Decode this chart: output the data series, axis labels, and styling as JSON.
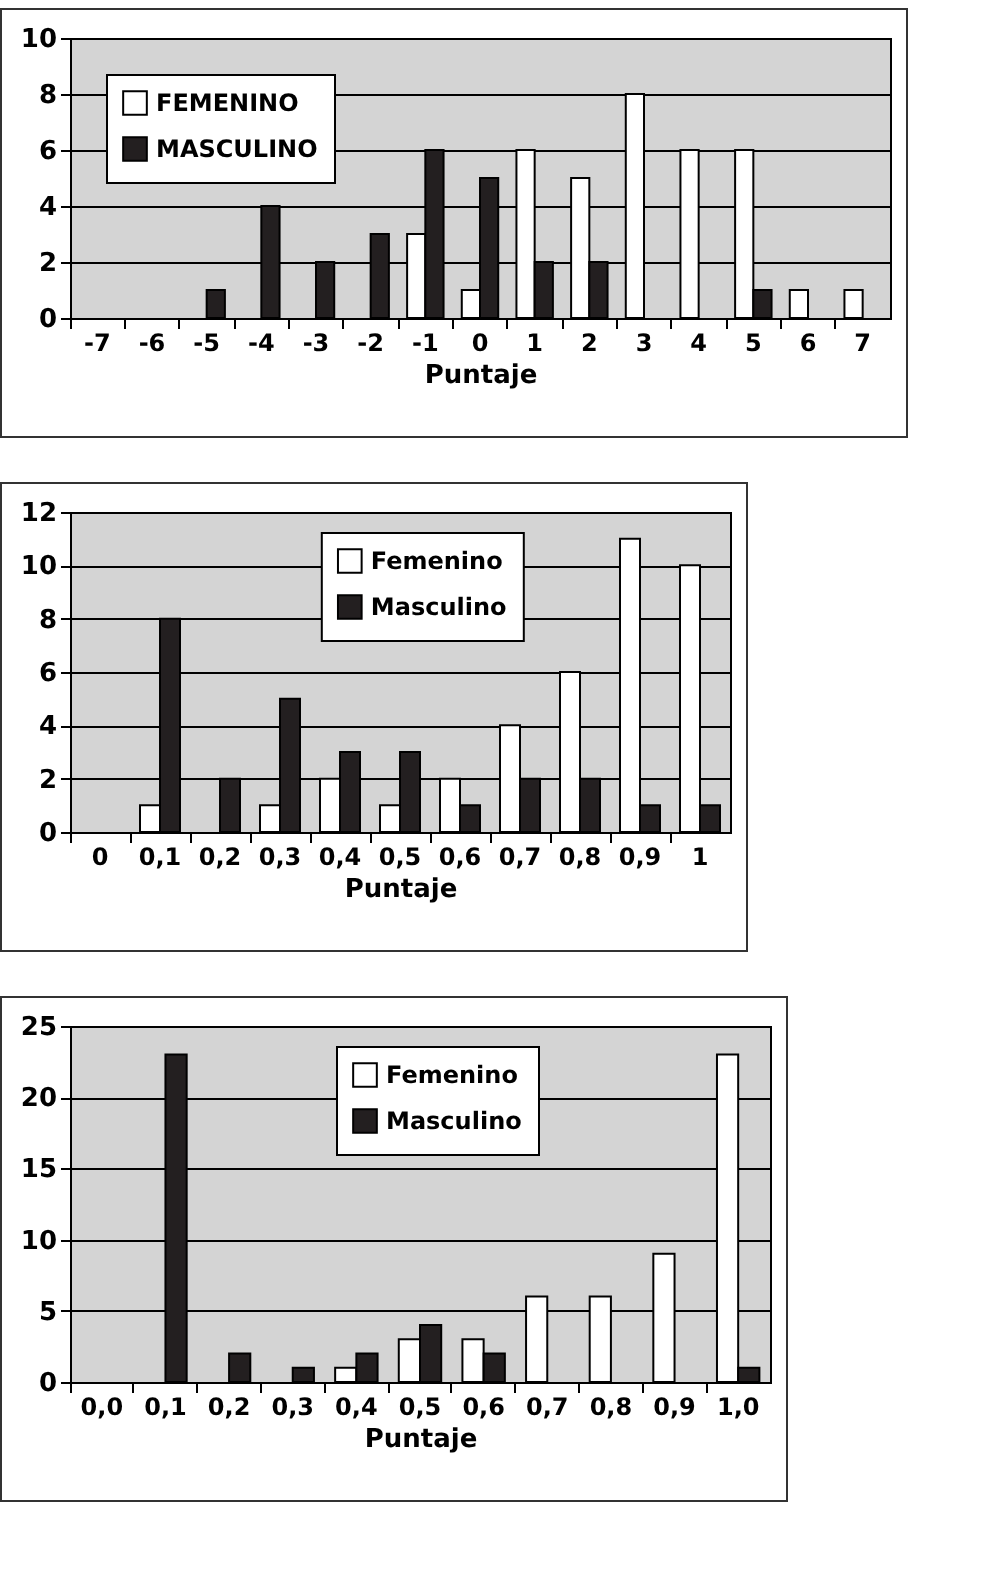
{
  "chart_data": [
    {
      "type": "bar",
      "xlabel": "Puntaje",
      "categories": [
        "-7",
        "-6",
        "-5",
        "-4",
        "-3",
        "-2",
        "-1",
        "0",
        "1",
        "2",
        "3",
        "4",
        "5",
        "6",
        "7"
      ],
      "series": [
        {
          "name": "FEMENINO",
          "color": "#ffffff",
          "values": [
            0,
            0,
            0,
            0,
            0,
            0,
            3,
            1,
            6,
            5,
            8,
            6,
            6,
            1,
            1
          ]
        },
        {
          "name": "MASCULINO",
          "color": "#231f20",
          "values": [
            0,
            0,
            1,
            4,
            2,
            3,
            6,
            5,
            2,
            2,
            0,
            0,
            1,
            0,
            0
          ]
        }
      ],
      "ylim": [
        0,
        10
      ],
      "yticks": [
        0,
        2,
        4,
        6,
        8,
        10
      ],
      "grid": "y",
      "legend": "top left"
    },
    {
      "type": "bar",
      "xlabel": "Puntaje",
      "categories": [
        "0",
        "0,1",
        "0,2",
        "0,3",
        "0,4",
        "0,5",
        "0,6",
        "0,7",
        "0,8",
        "0,9",
        "1"
      ],
      "series": [
        {
          "name": "Femenino",
          "color": "#ffffff",
          "values": [
            0,
            1,
            0,
            1,
            2,
            1,
            2,
            4,
            6,
            11,
            10
          ]
        },
        {
          "name": "Masculino",
          "color": "#231f20",
          "values": [
            0,
            8,
            2,
            5,
            3,
            3,
            1,
            2,
            2,
            1,
            1
          ]
        }
      ],
      "ylim": [
        0,
        12
      ],
      "yticks": [
        0,
        2,
        4,
        6,
        8,
        10,
        12
      ],
      "grid": "y",
      "legend": "top"
    },
    {
      "type": "bar",
      "xlabel": "Puntaje",
      "categories": [
        "0,0",
        "0,1",
        "0,2",
        "0,3",
        "0,4",
        "0,5",
        "0,6",
        "0,7",
        "0,8",
        "0,9",
        "1,0"
      ],
      "series": [
        {
          "name": "Femenino",
          "color": "#ffffff",
          "values": [
            0,
            0,
            0,
            0,
            1,
            3,
            3,
            6,
            6,
            9,
            23
          ]
        },
        {
          "name": "Masculino",
          "color": "#231f20",
          "values": [
            0,
            23,
            2,
            1,
            2,
            4,
            2,
            0,
            0,
            0,
            1
          ]
        }
      ],
      "ylim": [
        0,
        25
      ],
      "yticks": [
        0,
        5,
        10,
        15,
        20,
        25
      ],
      "grid": "y",
      "legend": "top"
    }
  ]
}
